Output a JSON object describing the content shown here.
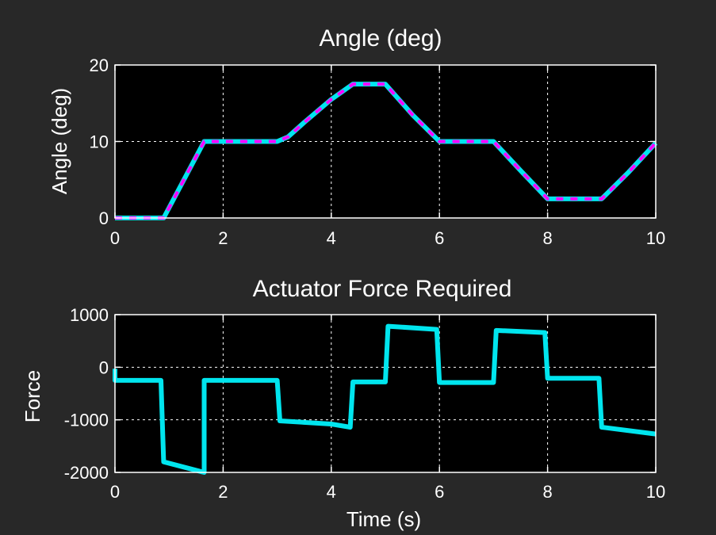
{
  "figure": {
    "background_color": "#282828",
    "axes_background_color": "#000000",
    "text_color": "#ffffff",
    "grid_color": "#ffffff"
  },
  "chart_data": [
    {
      "type": "line",
      "title": "Angle (deg)",
      "xlabel": "",
      "ylabel": "Angle (deg)",
      "xlim": [
        0,
        10
      ],
      "ylim": [
        0,
        20
      ],
      "xticks": [
        0,
        2,
        4,
        6,
        8,
        10
      ],
      "yticks": [
        0,
        10,
        20
      ],
      "xtick_labels": [
        "0",
        "2",
        "4",
        "6",
        "8",
        "10"
      ],
      "ytick_labels": [
        "0",
        "10",
        "20"
      ],
      "grid": true,
      "series": [
        {
          "color": "#00e5ee",
          "style": "solid",
          "x": [
            0,
            0.9,
            1.65,
            3.0,
            3.2,
            3.5,
            4.0,
            4.4,
            5.0,
            5.5,
            6.0,
            7.0,
            7.5,
            8.0,
            9.0,
            9.5,
            10.0
          ],
          "y": [
            0,
            0,
            10,
            10,
            10.6,
            12.5,
            15.5,
            17.5,
            17.5,
            13.5,
            10,
            10,
            6.2,
            2.5,
            2.5,
            6,
            9.8
          ]
        },
        {
          "color": "#ff00ff",
          "style": "dashed",
          "x": [
            0,
            0.9,
            1.65,
            3.0,
            3.2,
            3.5,
            4.0,
            4.4,
            5.0,
            5.5,
            6.0,
            7.0,
            7.5,
            8.0,
            9.0,
            9.5,
            10.0
          ],
          "y": [
            0,
            0,
            10,
            10,
            10.6,
            12.5,
            15.5,
            17.5,
            17.5,
            13.5,
            10,
            10,
            6.2,
            2.5,
            2.5,
            6,
            9.8
          ]
        }
      ]
    },
    {
      "type": "line",
      "title": "Actuator Force Required",
      "xlabel": "Time (s)",
      "ylabel": "Force",
      "xlim": [
        0,
        10
      ],
      "ylim": [
        -2000,
        1000
      ],
      "xticks": [
        0,
        2,
        4,
        6,
        8,
        10
      ],
      "yticks": [
        -2000,
        -1000,
        0,
        1000
      ],
      "xtick_labels": [
        "0",
        "2",
        "4",
        "6",
        "8",
        "10"
      ],
      "ytick_labels": [
        "-2000",
        "-1000",
        "0",
        "1000"
      ],
      "grid": true,
      "series": [
        {
          "color": "#00e5ee",
          "style": "solid",
          "x": [
            0,
            0,
            0.85,
            0.9,
            1.65,
            1.65,
            1.7,
            3.0,
            3.05,
            4.0,
            4.35,
            4.4,
            5.0,
            5.05,
            5.95,
            6.0,
            7.0,
            7.05,
            7.95,
            8.0,
            8.95,
            9.0,
            10.0
          ],
          "y": [
            -30,
            -250,
            -250,
            -1800,
            -2000,
            -250,
            -250,
            -250,
            -1020,
            -1080,
            -1140,
            -280,
            -280,
            780,
            720,
            -290,
            -290,
            700,
            660,
            -210,
            -210,
            -1140,
            -1270
          ]
        }
      ]
    }
  ]
}
